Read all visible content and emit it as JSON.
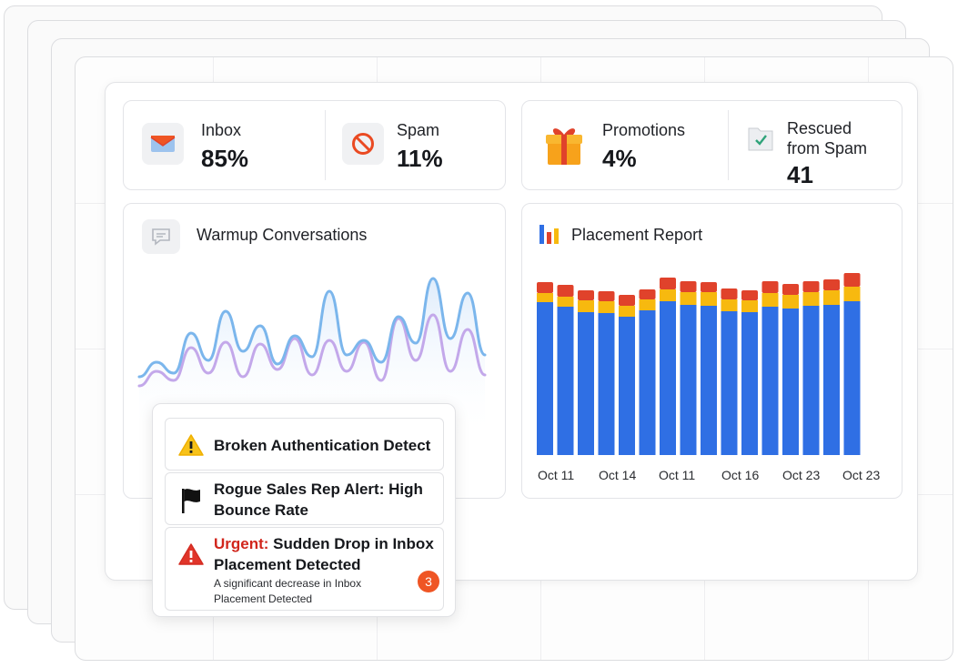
{
  "stats": {
    "inbox": {
      "label": "Inbox",
      "value": "85%"
    },
    "spam": {
      "label": "Spam",
      "value": "11%"
    },
    "promotions": {
      "label": "Promotions",
      "value": "4%"
    },
    "rescued": {
      "label_line1": "Rescued",
      "label_line2": "from Spam",
      "value": "41"
    }
  },
  "warmup": {
    "title": "Warmup Conversations",
    "icon": "chat-bubble-icon"
  },
  "placement": {
    "title": "Placement Report",
    "icon": "bar-chart-icon"
  },
  "alerts": [
    {
      "title": "Broken Authentication Detect",
      "icon": "warning-icon"
    },
    {
      "title": "Rogue Sales Rep Alert: High Bounce Rate",
      "icon": "flag-icon"
    },
    {
      "prefix": "Urgent:",
      "title": " Sudden Drop in Inbox Placement Detected",
      "subtitle": "A significant decrease in Inbox Placement Detected",
      "badge": "3",
      "icon": "alert-triangle-icon"
    }
  ],
  "colors": {
    "inbox_blue": "#2f6fe4",
    "spam_red": "#e0422b",
    "promotions_yellow": "#f7b90f",
    "line_blue": "#7bb6ec",
    "line_purple": "#c3a8ea"
  },
  "chart_data": [
    {
      "type": "bar",
      "title": "Placement Report",
      "stacked": true,
      "x_tick_labels": [
        "Oct 11",
        "Oct 14",
        "Oct 11",
        "Oct 16",
        "Oct 23",
        "Oct 23"
      ],
      "series": [
        {
          "values": [
            168,
            163,
            157,
            156,
            152,
            159,
            169,
            165,
            164,
            158,
            157,
            163,
            161,
            164,
            165,
            169
          ]
        },
        {
          "values": [
            10,
            11,
            13,
            13,
            12,
            12,
            13,
            14,
            15,
            13,
            13,
            15,
            15,
            15,
            16,
            16
          ]
        },
        {
          "values": [
            12,
            13,
            11,
            11,
            12,
            11,
            13,
            12,
            11,
            12,
            11,
            13,
            12,
            12,
            12,
            15
          ]
        }
      ]
    },
    {
      "type": "line",
      "title": "Warmup Conversations",
      "series": [
        {
          "values": [
            18,
            34,
            22,
            66,
            36,
            90,
            46,
            74,
            32,
            63,
            40,
            112,
            42,
            58,
            34,
            84,
            55,
            126,
            60,
            110,
            42
          ]
        },
        {
          "values": [
            8,
            24,
            14,
            50,
            22,
            56,
            18,
            54,
            26,
            60,
            20,
            58,
            24,
            56,
            14,
            82,
            36,
            86,
            24,
            70,
            20
          ]
        }
      ]
    }
  ]
}
